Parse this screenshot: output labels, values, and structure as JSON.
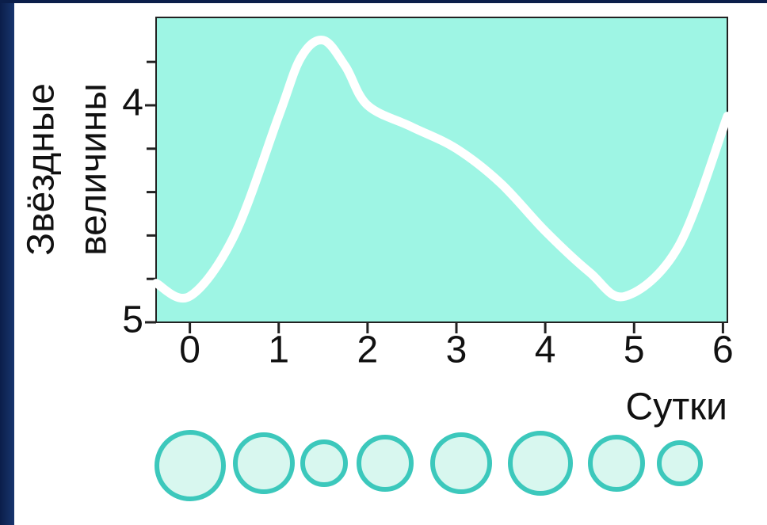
{
  "chart_data": {
    "type": "line",
    "ylabel_lines": [
      "Звёздные",
      "величины"
    ],
    "xlabel": "Сутки",
    "x": [
      -0.38,
      0,
      0.5,
      1,
      1.25,
      1.5,
      1.75,
      2,
      2.5,
      3,
      3.5,
      4,
      4.5,
      4.9,
      5.5,
      6.05
    ],
    "series": [
      {
        "color": "#ffffff",
        "values": [
          4.82,
          4.88,
          4.6,
          4.05,
          3.78,
          3.7,
          3.82,
          4.0,
          4.1,
          4.2,
          4.36,
          4.58,
          4.77,
          4.88,
          4.65,
          4.05
        ]
      }
    ],
    "xlim": [
      -0.38,
      6.05
    ],
    "xticks": [
      0,
      1,
      2,
      3,
      4,
      5,
      6
    ],
    "ylim": [
      5,
      3.595
    ],
    "yticks": [
      4,
      5
    ],
    "minor_yticks": [
      3.8,
      4.2,
      4.4,
      4.6,
      4.8
    ],
    "inverted_y": true,
    "background": "#9ef5e4"
  }
}
